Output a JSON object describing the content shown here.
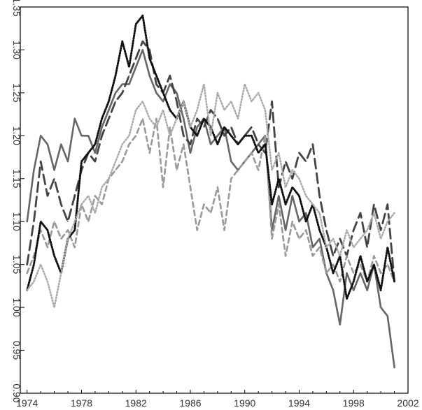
{
  "chart_data": {
    "type": "line",
    "title": "",
    "xlabel": "",
    "ylabel": "",
    "xlim": [
      1973.5,
      2002
    ],
    "ylim": [
      0.9,
      1.35
    ],
    "grid": false,
    "legend": "none",
    "x_ticks": [
      1974,
      1978,
      1982,
      1986,
      1990,
      1994,
      1998,
      2002
    ],
    "x_tick_labels": [
      "1974",
      "1978",
      "1982",
      "1986",
      "1990",
      "1994",
      "1998",
      "2002"
    ],
    "y_ticks": [
      0.9,
      0.95,
      1.0,
      1.05,
      1.1,
      1.15,
      1.2,
      1.25,
      1.3,
      1.35
    ],
    "y_tick_labels": [
      "0.90",
      "0.95",
      "1.00",
      "1.05",
      "1.10",
      "1.15",
      "1.20",
      "1.25",
      "1.30",
      "1.35"
    ],
    "series": [
      {
        "style": "solid",
        "color": "#666666",
        "x": [
          1974,
          1974.5,
          1975,
          1975.5,
          1976,
          1976.5,
          1977,
          1977.5,
          1978,
          1978.5,
          1979,
          1979.5,
          1980,
          1980.5,
          1981,
          1981.5,
          1982,
          1982.5,
          1983,
          1983.5,
          1984,
          1984.5,
          1985,
          1985.5,
          1986,
          1986.5,
          1987,
          1987.5,
          1988,
          1988.5,
          1989,
          1989.5,
          1990,
          1990.5,
          1991,
          1991.5,
          1992,
          1992.5,
          1993,
          1993.5,
          1994,
          1994.5,
          1995,
          1995.5,
          1996,
          1996.5,
          1997,
          1997.5,
          1998,
          1998.5,
          1999,
          1999.5,
          2000,
          2000.5,
          2001
        ],
        "y": [
          1.1,
          1.16,
          1.2,
          1.19,
          1.16,
          1.19,
          1.17,
          1.22,
          1.2,
          1.2,
          1.18,
          1.21,
          1.23,
          1.25,
          1.26,
          1.26,
          1.28,
          1.3,
          1.27,
          1.25,
          1.24,
          1.26,
          1.25,
          1.22,
          1.18,
          1.21,
          1.22,
          1.19,
          1.2,
          1.21,
          1.17,
          1.16,
          1.17,
          1.18,
          1.19,
          1.2,
          1.09,
          1.13,
          1.09,
          1.13,
          1.1,
          1.11,
          1.07,
          1.08,
          1.04,
          1.02,
          0.98,
          1.04,
          1.02,
          1.04,
          1.02,
          1.05,
          1.0,
          0.99,
          0.93
        ]
      },
      {
        "style": "long-dash",
        "color": "#444444",
        "x": [
          1974,
          1974.5,
          1975,
          1975.5,
          1976,
          1976.5,
          1977,
          1977.5,
          1978,
          1978.5,
          1979,
          1979.5,
          1980,
          1980.5,
          1981,
          1981.5,
          1982,
          1982.5,
          1983,
          1983.5,
          1984,
          1984.5,
          1985,
          1985.5,
          1986,
          1986.5,
          1987,
          1987.5,
          1988,
          1988.5,
          1989,
          1989.5,
          1990,
          1990.5,
          1991,
          1991.5,
          1992,
          1992.5,
          1993,
          1993.5,
          1994,
          1994.5,
          1995,
          1995.5,
          1996,
          1996.5,
          1997,
          1997.5,
          1998,
          1998.5,
          1999,
          1999.5,
          2000,
          2000.5,
          2001
        ],
        "y": [
          1.05,
          1.1,
          1.17,
          1.13,
          1.15,
          1.12,
          1.1,
          1.13,
          1.16,
          1.18,
          1.17,
          1.2,
          1.22,
          1.24,
          1.25,
          1.27,
          1.29,
          1.31,
          1.3,
          1.26,
          1.25,
          1.27,
          1.24,
          1.2,
          1.19,
          1.22,
          1.21,
          1.23,
          1.22,
          1.2,
          1.21,
          1.19,
          1.2,
          1.21,
          1.19,
          1.18,
          1.24,
          1.14,
          1.17,
          1.15,
          1.18,
          1.17,
          1.19,
          1.13,
          1.09,
          1.06,
          1.08,
          1.06,
          1.09,
          1.11,
          1.07,
          1.12,
          1.09,
          1.12,
          1.03
        ]
      },
      {
        "style": "short-dash",
        "color": "#999999",
        "x": [
          1974,
          1974.5,
          1975,
          1975.5,
          1976,
          1976.5,
          1977,
          1977.5,
          1978,
          1978.5,
          1979,
          1979.5,
          1980,
          1980.5,
          1981,
          1981.5,
          1982,
          1982.5,
          1983,
          1983.5,
          1984,
          1984.5,
          1985,
          1985.5,
          1986,
          1986.5,
          1987,
          1987.5,
          1988,
          1988.5,
          1989,
          1989.5,
          1990,
          1990.5,
          1991,
          1991.5,
          1992,
          1992.5,
          1993,
          1993.5,
          1994,
          1994.5,
          1995,
          1995.5,
          1996,
          1996.5,
          1997,
          1997.5,
          1998,
          1998.5,
          1999,
          1999.5,
          2000,
          2000.5,
          2001
        ],
        "y": [
          1.04,
          1.06,
          1.09,
          1.07,
          1.1,
          1.08,
          1.09,
          1.07,
          1.12,
          1.1,
          1.13,
          1.12,
          1.15,
          1.16,
          1.17,
          1.19,
          1.2,
          1.22,
          1.18,
          1.22,
          1.14,
          1.21,
          1.16,
          1.19,
          1.14,
          1.09,
          1.12,
          1.11,
          1.14,
          1.09,
          1.15,
          1.16,
          1.17,
          1.18,
          1.16,
          1.2,
          1.08,
          1.12,
          1.06,
          1.1,
          1.08,
          1.09,
          1.06,
          1.07,
          1.04,
          1.05,
          1.03,
          1.06,
          1.04,
          1.05,
          1.03,
          1.06,
          1.04,
          1.05,
          1.03
        ]
      },
      {
        "style": "dotted-black",
        "color": "#111111",
        "x": [
          1974,
          1974.5,
          1975,
          1975.5,
          1976,
          1976.5,
          1977,
          1977.5,
          1978,
          1978.5,
          1979,
          1979.5,
          1980,
          1980.5,
          1981,
          1981.5,
          1982,
          1982.5,
          1983,
          1983.5,
          1984,
          1984.5,
          1985,
          1985.5,
          1986,
          1986.5,
          1987,
          1987.5,
          1988,
          1988.5,
          1989,
          1989.5,
          1990,
          1990.5,
          1991,
          1991.5,
          1992,
          1992.5,
          1993,
          1993.5,
          1994,
          1994.5,
          1995,
          1995.5,
          1996,
          1996.5,
          1997,
          1997.5,
          1998,
          1998.5,
          1999,
          1999.5,
          2000,
          2000.5,
          2001
        ],
        "y": [
          1.02,
          1.05,
          1.1,
          1.09,
          1.06,
          1.04,
          1.08,
          1.09,
          1.17,
          1.18,
          1.19,
          1.22,
          1.24,
          1.27,
          1.31,
          1.28,
          1.33,
          1.34,
          1.29,
          1.27,
          1.25,
          1.23,
          1.22,
          1.24,
          1.21,
          1.2,
          1.22,
          1.21,
          1.19,
          1.21,
          1.2,
          1.19,
          1.2,
          1.2,
          1.18,
          1.19,
          1.12,
          1.15,
          1.12,
          1.14,
          1.13,
          1.1,
          1.12,
          1.09,
          1.07,
          1.04,
          1.06,
          1.01,
          1.03,
          1.06,
          1.03,
          1.05,
          1.02,
          1.07,
          1.03
        ]
      },
      {
        "style": "dotted-grey",
        "color": "#aaaaaa",
        "x": [
          1974,
          1974.5,
          1975,
          1975.5,
          1976,
          1976.5,
          1977,
          1977.5,
          1978,
          1978.5,
          1979,
          1979.5,
          1980,
          1980.5,
          1981,
          1981.5,
          1982,
          1982.5,
          1983,
          1983.5,
          1984,
          1984.5,
          1985,
          1985.5,
          1986,
          1986.5,
          1987,
          1987.5,
          1988,
          1988.5,
          1989,
          1989.5,
          1990,
          1990.5,
          1991,
          1991.5,
          1992,
          1992.5,
          1993,
          1993.5,
          1994,
          1994.5,
          1995,
          1995.5,
          1996,
          1996.5,
          1997,
          1997.5,
          1998,
          1998.5,
          1999,
          1999.5,
          2000,
          2000.5,
          2001
        ],
        "y": [
          1.02,
          1.03,
          1.05,
          1.03,
          1.0,
          1.04,
          1.08,
          1.1,
          1.12,
          1.13,
          1.11,
          1.14,
          1.15,
          1.17,
          1.19,
          1.2,
          1.23,
          1.24,
          1.22,
          1.21,
          1.23,
          1.2,
          1.22,
          1.24,
          1.21,
          1.23,
          1.26,
          1.2,
          1.25,
          1.23,
          1.24,
          1.22,
          1.26,
          1.24,
          1.25,
          1.23,
          1.16,
          1.18,
          1.14,
          1.16,
          1.15,
          1.13,
          1.12,
          1.11,
          1.07,
          1.08,
          1.06,
          1.09,
          1.07,
          1.08,
          1.09,
          1.11,
          1.08,
          1.1,
          1.11
        ]
      }
    ]
  }
}
